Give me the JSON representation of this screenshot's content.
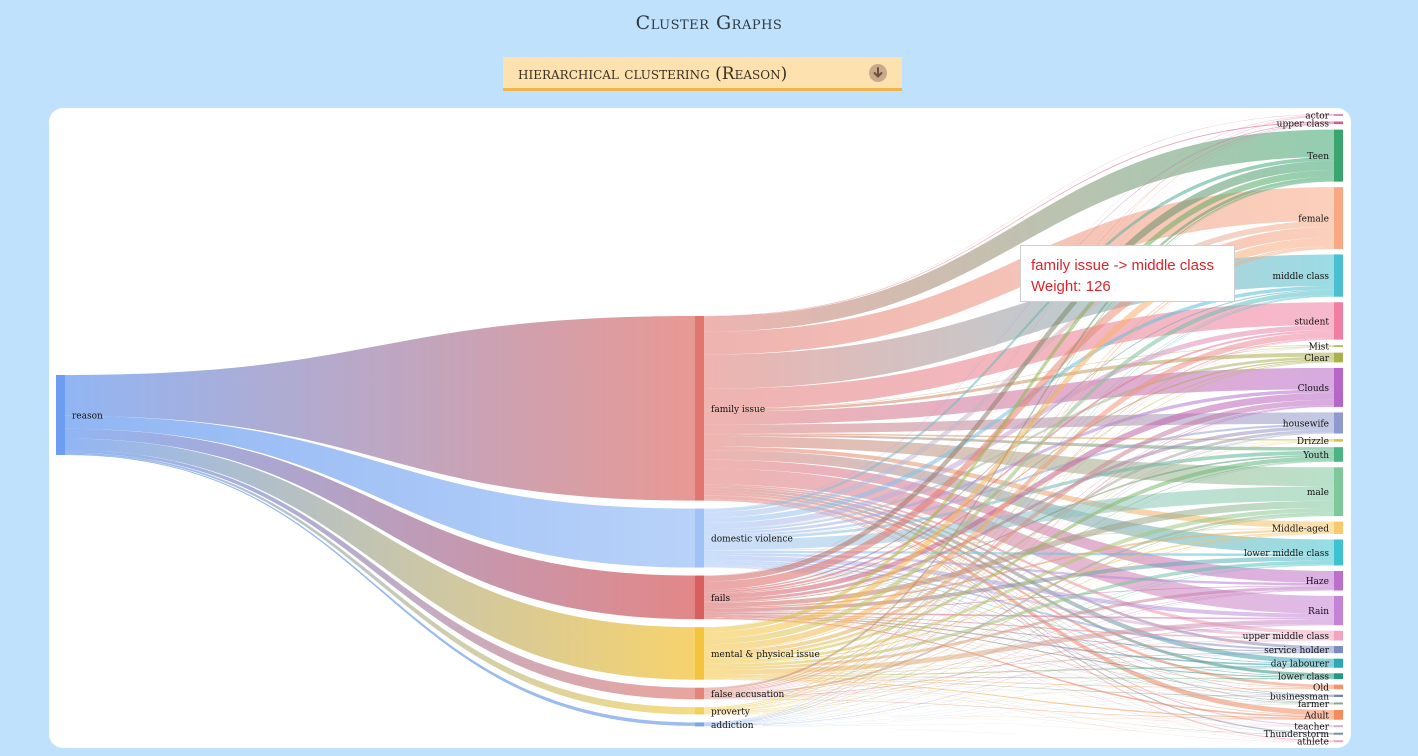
{
  "header": {
    "title": "Cluster Graphs"
  },
  "selector": {
    "label": "hierarchical clustering (Reason)",
    "icon": "download-arrow-icon"
  },
  "tooltip": {
    "link": "family issue -> middle class",
    "weight": "Weight: 126"
  },
  "chart_data": {
    "type": "sankey",
    "title": "",
    "source": {
      "name": "reason",
      "color": "#6c9df0"
    },
    "reasons": [
      {
        "name": "family issue",
        "value": 720,
        "color": "#e0766f"
      },
      {
        "name": "domestic violence",
        "value": 230,
        "color": "#a0c3f7"
      },
      {
        "name": "fails",
        "value": 170,
        "color": "#d95f5f"
      },
      {
        "name": "mental & physical issue",
        "value": 205,
        "color": "#f4c43c"
      },
      {
        "name": "false accusation",
        "value": 45,
        "color": "#e2867c"
      },
      {
        "name": "proverty",
        "value": 28,
        "color": "#f2d05a"
      },
      {
        "name": "addiction",
        "value": 14,
        "color": "#7ea7ea"
      }
    ],
    "targets": [
      {
        "name": "actor",
        "value": 4,
        "color": "#e58fb0"
      },
      {
        "name": "upper class",
        "value": 8,
        "color": "#d35b8e"
      },
      {
        "name": "Teen",
        "value": 160,
        "color": "#3aa56e"
      },
      {
        "name": "female",
        "value": 190,
        "color": "#f8a984"
      },
      {
        "name": "middle class",
        "value": 130,
        "color": "#49bfcf"
      },
      {
        "name": "student",
        "value": 115,
        "color": "#f07fa3"
      },
      {
        "name": "Mist",
        "value": 6,
        "color": "#b7bd67"
      },
      {
        "name": "Clear",
        "value": 30,
        "color": "#a9b24a"
      },
      {
        "name": "Clouds",
        "value": 120,
        "color": "#b766c8"
      },
      {
        "name": "housewife",
        "value": 65,
        "color": "#8f9bd0"
      },
      {
        "name": "Drizzle",
        "value": 8,
        "color": "#d8c24e"
      },
      {
        "name": "Youth",
        "value": 45,
        "color": "#4cb383"
      },
      {
        "name": "male",
        "value": 150,
        "color": "#7fc89c"
      },
      {
        "name": "Middle-aged",
        "value": 38,
        "color": "#f7c96a"
      },
      {
        "name": "lower middle class",
        "value": 80,
        "color": "#3ec2cf"
      },
      {
        "name": "Haze",
        "value": 60,
        "color": "#bd6fcc"
      },
      {
        "name": "Rain",
        "value": 90,
        "color": "#c583d6"
      },
      {
        "name": "upper middle class",
        "value": 30,
        "color": "#f1a3bf"
      },
      {
        "name": "service holder",
        "value": 22,
        "color": "#7b8bc6"
      },
      {
        "name": "day labourer",
        "value": 28,
        "color": "#2aa8b9"
      },
      {
        "name": "lower class",
        "value": 18,
        "color": "#24977f"
      },
      {
        "name": "Old",
        "value": 14,
        "color": "#f4926b"
      },
      {
        "name": "businessman",
        "value": 7,
        "color": "#6f87a8"
      },
      {
        "name": "farmer",
        "value": 4,
        "color": "#8aa596"
      },
      {
        "name": "Adult",
        "value": 30,
        "color": "#f58a5a"
      },
      {
        "name": "teacher",
        "value": 4,
        "color": "#c9b0d6"
      },
      {
        "name": "Thunderstorm",
        "value": 5,
        "color": "#6f93a8"
      },
      {
        "name": "athlete",
        "value": 4,
        "color": "#f0a3b3"
      }
    ],
    "highlight": {
      "from": "family issue",
      "to": "middle class",
      "weight": 126
    }
  }
}
